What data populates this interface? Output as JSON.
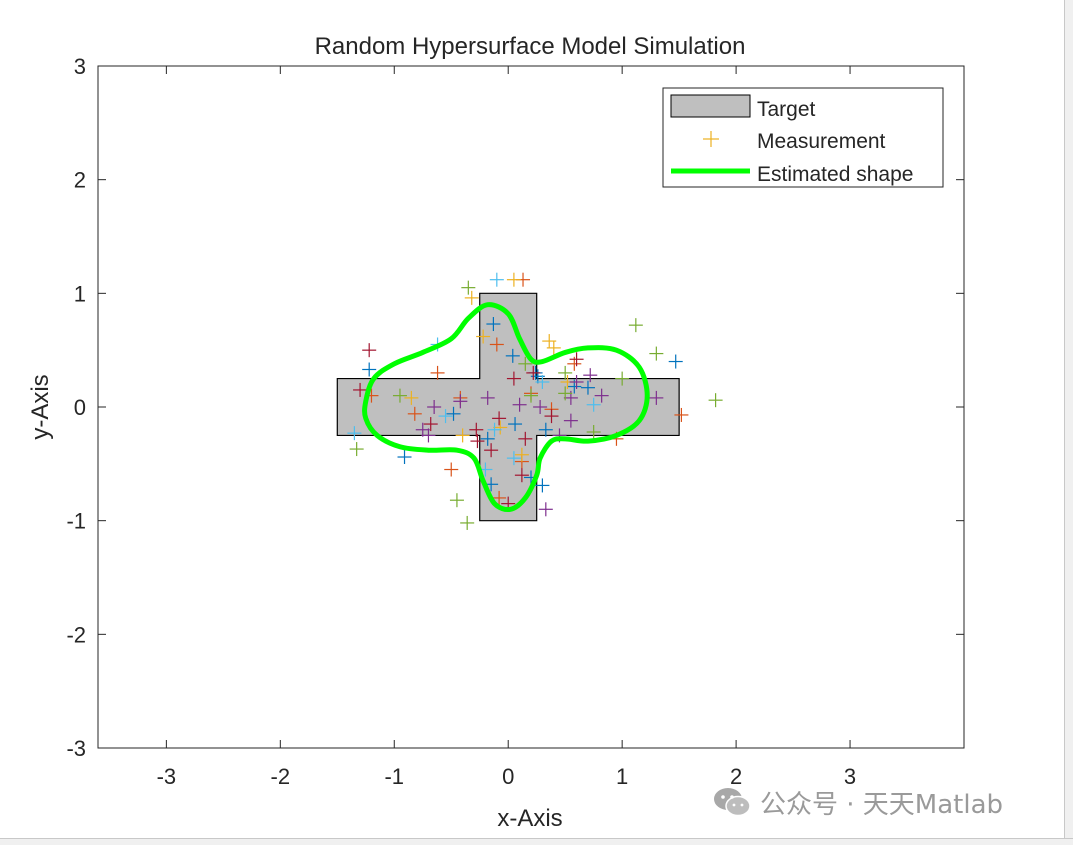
{
  "watermark": {
    "text": "公众号 · 天天Matlab",
    "icon": "wechat-icon"
  },
  "chart_data": {
    "type": "scatter",
    "title": "Random Hypersurface Model Simulation",
    "xlabel": "x-Axis",
    "ylabel": "y-Axis",
    "xlim": [
      -3.6,
      4.0
    ],
    "ylim": [
      -3,
      3
    ],
    "xticks": [
      -3,
      -2,
      -1,
      0,
      1,
      2,
      3
    ],
    "yticks": [
      -3,
      -2,
      -1,
      0,
      1,
      2,
      3
    ],
    "grid": false,
    "legend": {
      "placement": "top-right",
      "entries": [
        {
          "label": "Target",
          "type": "patch",
          "color": "#bfbfbf"
        },
        {
          "label": "Measurement",
          "type": "marker",
          "color": "#EDB120"
        },
        {
          "label": "Estimated shape",
          "type": "line",
          "color": "#00ff00"
        }
      ]
    },
    "target": {
      "color": "#bfbfbf",
      "edge": "#000000",
      "polygon": [
        [
          -0.25,
          1
        ],
        [
          0.25,
          1
        ],
        [
          0.25,
          0.25
        ],
        [
          1.5,
          0.25
        ],
        [
          1.5,
          -0.25
        ],
        [
          0.25,
          -0.25
        ],
        [
          0.25,
          -1
        ],
        [
          -0.25,
          -1
        ],
        [
          -0.25,
          -0.25
        ],
        [
          -1.5,
          -0.25
        ],
        [
          -1.5,
          0.25
        ],
        [
          -0.25,
          0.25
        ]
      ]
    },
    "estimated_shape": {
      "color": "#00ff00",
      "points": [
        [
          -1.25,
          0.05
        ],
        [
          -1.18,
          0.25
        ],
        [
          -1.0,
          0.38
        ],
        [
          -0.75,
          0.48
        ],
        [
          -0.5,
          0.6
        ],
        [
          -0.35,
          0.78
        ],
        [
          -0.18,
          0.9
        ],
        [
          0.0,
          0.82
        ],
        [
          0.1,
          0.6
        ],
        [
          0.2,
          0.42
        ],
        [
          0.3,
          0.4
        ],
        [
          0.5,
          0.48
        ],
        [
          0.7,
          0.52
        ],
        [
          0.95,
          0.5
        ],
        [
          1.15,
          0.35
        ],
        [
          1.22,
          0.1
        ],
        [
          1.15,
          -0.12
        ],
        [
          0.95,
          -0.25
        ],
        [
          0.7,
          -0.3
        ],
        [
          0.5,
          -0.28
        ],
        [
          0.38,
          -0.3
        ],
        [
          0.28,
          -0.45
        ],
        [
          0.25,
          -0.6
        ],
        [
          0.15,
          -0.8
        ],
        [
          0.02,
          -0.9
        ],
        [
          -0.12,
          -0.85
        ],
        [
          -0.22,
          -0.65
        ],
        [
          -0.3,
          -0.45
        ],
        [
          -0.45,
          -0.38
        ],
        [
          -0.7,
          -0.38
        ],
        [
          -0.95,
          -0.35
        ],
        [
          -1.15,
          -0.25
        ],
        [
          -1.25,
          -0.1
        ]
      ]
    },
    "measurement_colors": [
      "#0072BD",
      "#D95319",
      "#EDB120",
      "#7E2F8E",
      "#77AC30",
      "#4DBEEE",
      "#A2142F"
    ],
    "measurements": [
      {
        "x": 0.2,
        "y": -0.62,
        "c": 0
      },
      {
        "x": 0.04,
        "y": 0.45,
        "c": 0
      },
      {
        "x": 0.3,
        "y": -0.69,
        "c": 0
      },
      {
        "x": -0.15,
        "y": -0.68,
        "c": 0
      },
      {
        "x": 0.33,
        "y": -0.2,
        "c": 0
      },
      {
        "x": -0.13,
        "y": 0.73,
        "c": 0
      },
      {
        "x": 0.58,
        "y": 0.18,
        "c": 0
      },
      {
        "x": -0.91,
        "y": -0.44,
        "c": 0
      },
      {
        "x": 0.26,
        "y": 0.27,
        "c": 0
      },
      {
        "x": 1.47,
        "y": 0.4,
        "c": 0
      },
      {
        "x": -1.22,
        "y": 0.33,
        "c": 0
      },
      {
        "x": 0.06,
        "y": -0.15,
        "c": 0
      },
      {
        "x": -0.18,
        "y": -0.28,
        "c": 0
      },
      {
        "x": -0.48,
        "y": -0.06,
        "c": 0
      },
      {
        "x": 0.7,
        "y": 0.17,
        "c": 0
      },
      {
        "x": 0.24,
        "y": 0.3,
        "c": 0
      },
      {
        "x": 0.13,
        "y": 1.12,
        "c": 1
      },
      {
        "x": -1.2,
        "y": 0.1,
        "c": 1
      },
      {
        "x": -0.82,
        "y": -0.06,
        "c": 1
      },
      {
        "x": 0.58,
        "y": 0.38,
        "c": 1
      },
      {
        "x": -0.62,
        "y": 0.3,
        "c": 1
      },
      {
        "x": 1.52,
        "y": -0.07,
        "c": 1
      },
      {
        "x": 0.95,
        "y": -0.28,
        "c": 1
      },
      {
        "x": -0.5,
        "y": -0.55,
        "c": 1
      },
      {
        "x": -0.1,
        "y": 0.55,
        "c": 1
      },
      {
        "x": 0.2,
        "y": 0.12,
        "c": 1
      },
      {
        "x": 0.38,
        "y": -0.02,
        "c": 1
      },
      {
        "x": -0.42,
        "y": 0.08,
        "c": 1
      },
      {
        "x": -0.08,
        "y": -0.8,
        "c": 1
      },
      {
        "x": 0.12,
        "y": -0.48,
        "c": 1
      },
      {
        "x": 0.36,
        "y": 0.58,
        "c": 2
      },
      {
        "x": -0.07,
        "y": -0.18,
        "c": 2
      },
      {
        "x": -0.32,
        "y": 0.96,
        "c": 2
      },
      {
        "x": -0.4,
        "y": -0.25,
        "c": 2
      },
      {
        "x": 0.52,
        "y": 0.22,
        "c": 2
      },
      {
        "x": -0.22,
        "y": 0.62,
        "c": 2
      },
      {
        "x": 0.12,
        "y": -0.42,
        "c": 2
      },
      {
        "x": -0.85,
        "y": 0.08,
        "c": 2
      },
      {
        "x": 0.05,
        "y": 1.12,
        "c": 2
      },
      {
        "x": 0.4,
        "y": 0.52,
        "c": 2
      },
      {
        "x": -0.42,
        "y": 0.05,
        "c": 3
      },
      {
        "x": 0.82,
        "y": 0.1,
        "c": 3
      },
      {
        "x": -0.65,
        "y": 0.0,
        "c": 3
      },
      {
        "x": -0.75,
        "y": -0.2,
        "c": 3
      },
      {
        "x": 0.6,
        "y": 0.22,
        "c": 3
      },
      {
        "x": 0.33,
        "y": -0.9,
        "c": 3
      },
      {
        "x": 0.1,
        "y": 0.02,
        "c": 3
      },
      {
        "x": -0.18,
        "y": 0.08,
        "c": 3
      },
      {
        "x": 1.3,
        "y": 0.08,
        "c": 3
      },
      {
        "x": 0.28,
        "y": 0.0,
        "c": 3
      },
      {
        "x": 0.55,
        "y": 0.08,
        "c": 3
      },
      {
        "x": 0.72,
        "y": 0.28,
        "c": 3
      },
      {
        "x": 0.45,
        "y": -0.25,
        "c": 3
      },
      {
        "x": -0.7,
        "y": -0.25,
        "c": 3
      },
      {
        "x": 0.55,
        "y": -0.12,
        "c": 3
      },
      {
        "x": -0.35,
        "y": 1.05,
        "c": 4
      },
      {
        "x": -0.95,
        "y": 0.1,
        "c": 4
      },
      {
        "x": 1.12,
        "y": 0.72,
        "c": 4
      },
      {
        "x": 1.82,
        "y": 0.06,
        "c": 4
      },
      {
        "x": 1.3,
        "y": 0.47,
        "c": 4
      },
      {
        "x": -0.45,
        "y": -0.82,
        "c": 4
      },
      {
        "x": -0.36,
        "y": -1.02,
        "c": 4
      },
      {
        "x": -1.33,
        "y": -0.37,
        "c": 4
      },
      {
        "x": 0.5,
        "y": 0.3,
        "c": 4
      },
      {
        "x": 1.0,
        "y": 0.25,
        "c": 4
      },
      {
        "x": 0.15,
        "y": 0.38,
        "c": 4
      },
      {
        "x": 0.2,
        "y": 0.1,
        "c": 4
      },
      {
        "x": 0.75,
        "y": -0.22,
        "c": 4
      },
      {
        "x": 0.5,
        "y": 0.12,
        "c": 4
      },
      {
        "x": -0.1,
        "y": 1.12,
        "c": 5
      },
      {
        "x": -1.35,
        "y": -0.23,
        "c": 5
      },
      {
        "x": 0.75,
        "y": 0.02,
        "c": 5
      },
      {
        "x": -0.2,
        "y": -0.55,
        "c": 5
      },
      {
        "x": -0.55,
        "y": -0.08,
        "c": 5
      },
      {
        "x": 0.05,
        "y": -0.45,
        "c": 5
      },
      {
        "x": -0.12,
        "y": -0.2,
        "c": 5
      },
      {
        "x": 0.3,
        "y": 0.22,
        "c": 5
      },
      {
        "x": -0.62,
        "y": 0.55,
        "c": 5
      },
      {
        "x": -1.22,
        "y": 0.5,
        "c": 6
      },
      {
        "x": -1.3,
        "y": 0.15,
        "c": 6
      },
      {
        "x": 0.6,
        "y": 0.42,
        "c": 6
      },
      {
        "x": -0.27,
        "y": -0.3,
        "c": 6
      },
      {
        "x": -0.15,
        "y": -0.38,
        "c": 6
      },
      {
        "x": 0.12,
        "y": -0.6,
        "c": 6
      },
      {
        "x": 0.0,
        "y": -0.85,
        "c": 6
      },
      {
        "x": 0.22,
        "y": 0.3,
        "c": 6
      },
      {
        "x": -0.68,
        "y": -0.15,
        "c": 6
      },
      {
        "x": -0.08,
        "y": -0.1,
        "c": 6
      },
      {
        "x": 0.15,
        "y": -0.28,
        "c": 6
      },
      {
        "x": -0.28,
        "y": -0.2,
        "c": 6
      },
      {
        "x": 0.05,
        "y": 0.25,
        "c": 6
      },
      {
        "x": 0.38,
        "y": -0.08,
        "c": 6
      }
    ]
  }
}
